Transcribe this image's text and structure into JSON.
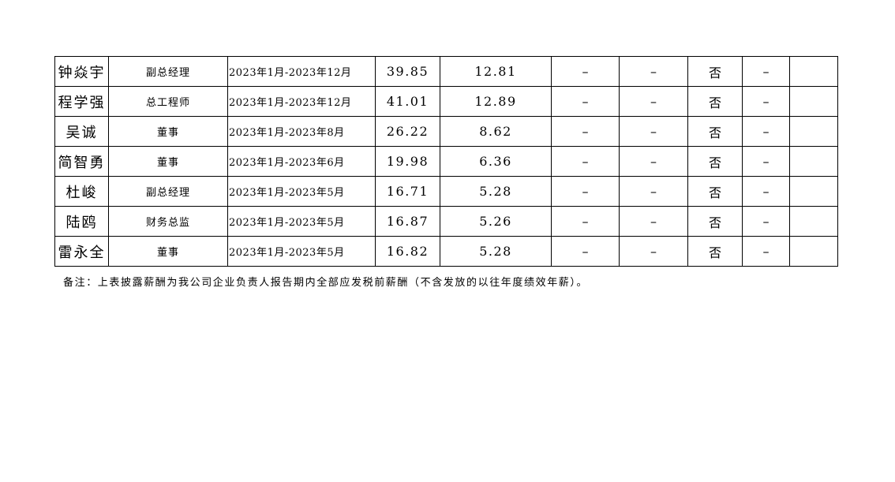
{
  "rows": [
    {
      "name": "钟焱宇",
      "title": "副总经理",
      "period": "2023年1月-2023年12月",
      "total": "39.85",
      "other": "12.81",
      "c6": "–",
      "c7": "–",
      "related": "否",
      "c9": "–",
      "c10": ""
    },
    {
      "name": "程学强",
      "title": "总工程师",
      "period": "2023年1月-2023年12月",
      "total": "41.01",
      "other": "12.89",
      "c6": "–",
      "c7": "–",
      "related": "否",
      "c9": "–",
      "c10": ""
    },
    {
      "name": "吴诚",
      "title": "董事",
      "period": "2023年1月-2023年8月",
      "total": "26.22",
      "other": "8.62",
      "c6": "–",
      "c7": "–",
      "related": "否",
      "c9": "–",
      "c10": ""
    },
    {
      "name": "简智勇",
      "title": "董事",
      "period": "2023年1月-2023年6月",
      "total": "19.98",
      "other": "6.36",
      "c6": "–",
      "c7": "–",
      "related": "否",
      "c9": "–",
      "c10": ""
    },
    {
      "name": "杜峻",
      "title": "副总经理",
      "period": "2023年1月-2023年5月",
      "total": "16.71",
      "other": "5.28",
      "c6": "–",
      "c7": "–",
      "related": "否",
      "c9": "–",
      "c10": ""
    },
    {
      "name": "陆鸥",
      "title": "财务总监",
      "period": "2023年1月-2023年5月",
      "total": "16.87",
      "other": "5.26",
      "c6": "–",
      "c7": "–",
      "related": "否",
      "c9": "–",
      "c10": ""
    },
    {
      "name": "雷永全",
      "title": "董事",
      "period": "2023年1月-2023年5月",
      "total": "16.82",
      "other": "5.28",
      "c6": "–",
      "c7": "–",
      "related": "否",
      "c9": "–",
      "c10": ""
    }
  ],
  "note": "备注：上表披露薪酬为我公司企业负责人报告期内全部应发税前薪酬（不含发放的以往年度绩效年薪）。"
}
